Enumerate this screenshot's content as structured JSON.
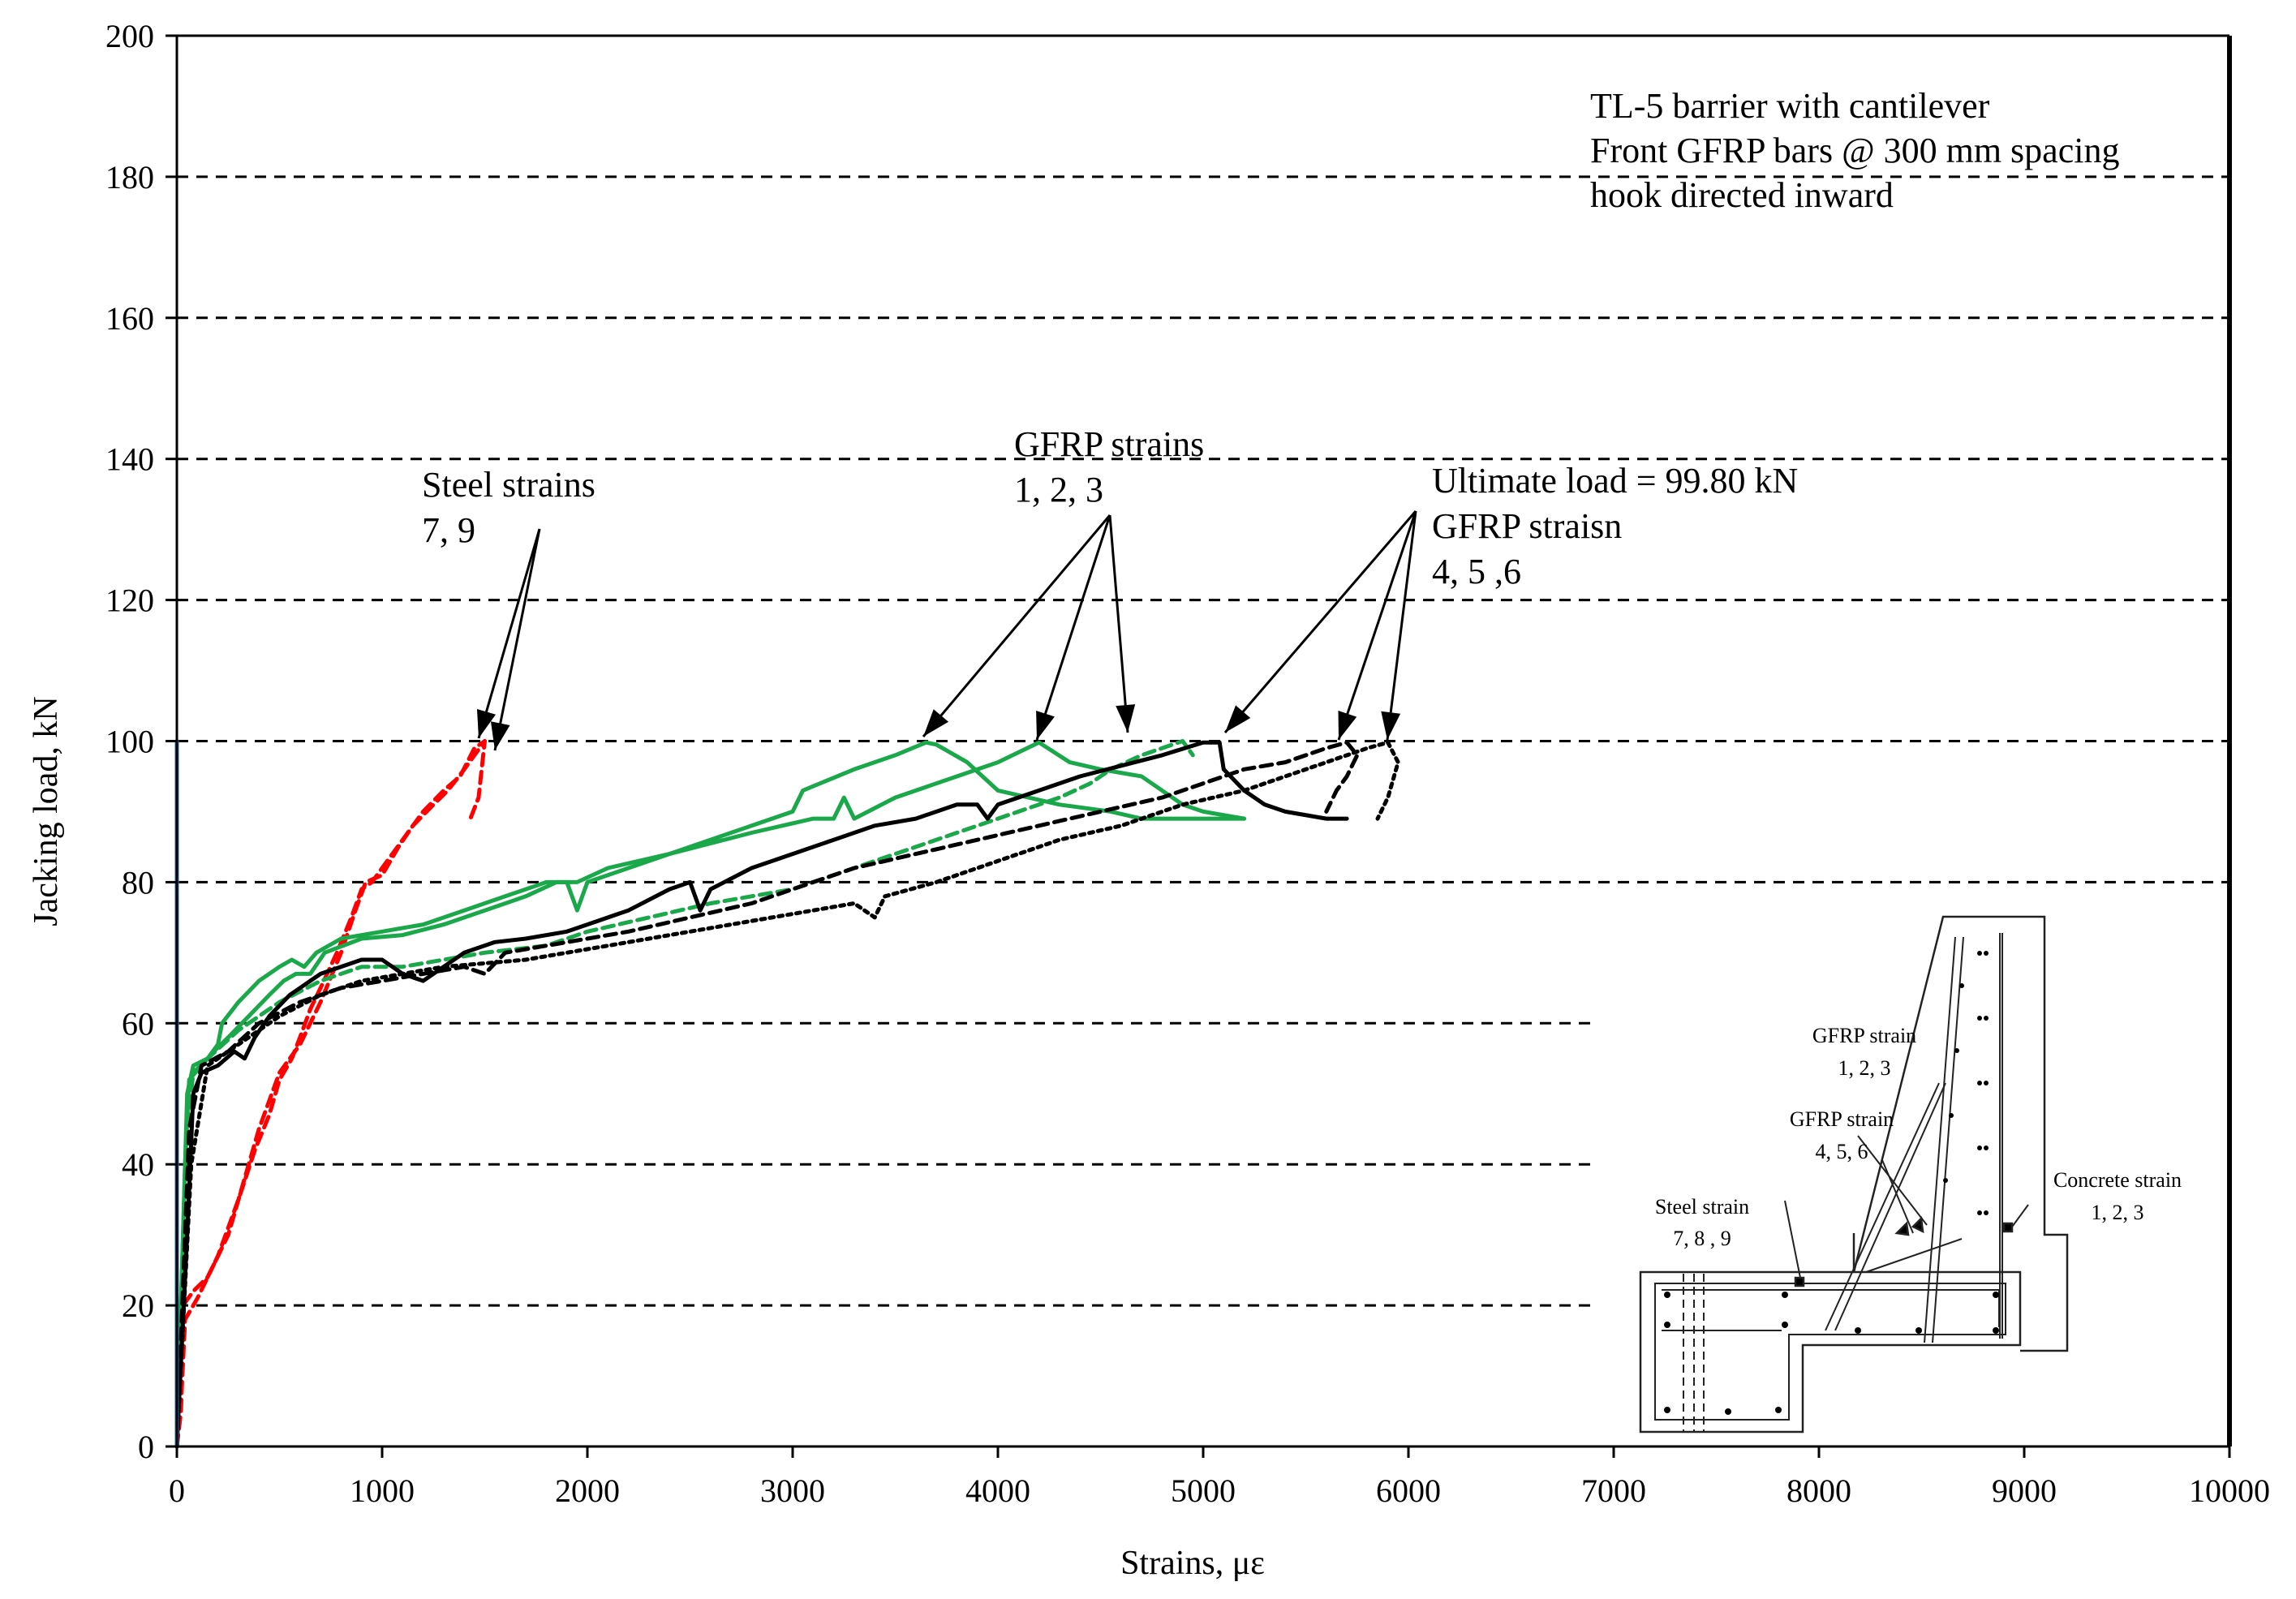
{
  "chart_data": {
    "type": "line",
    "xlabel": "Strains, με",
    "ylabel": "Jacking load, kN",
    "xlim": [
      0,
      10000
    ],
    "ylim": [
      0,
      200
    ],
    "x_ticks": [
      0,
      1000,
      2000,
      3000,
      4000,
      5000,
      6000,
      7000,
      8000,
      9000,
      10000
    ],
    "y_ticks": [
      0,
      20,
      40,
      60,
      80,
      100,
      120,
      140,
      160,
      180,
      200
    ],
    "grid": "horizontal dashed",
    "title_lines": [
      "TL-5 barrier with cantilever",
      "Front GFRP bars @ 300 mm spacing",
      "hook directed inward"
    ],
    "series": [
      {
        "name": "Steel strain 7",
        "color": "#ff0000",
        "style": "dashed",
        "points": [
          [
            0,
            0
          ],
          [
            20,
            5
          ],
          [
            30,
            20
          ],
          [
            80,
            22
          ],
          [
            150,
            24
          ],
          [
            200,
            27
          ],
          [
            300,
            35
          ],
          [
            380,
            42
          ],
          [
            450,
            47
          ],
          [
            500,
            52
          ],
          [
            560,
            55
          ],
          [
            600,
            58
          ],
          [
            650,
            62
          ],
          [
            700,
            65
          ],
          [
            780,
            70
          ],
          [
            850,
            75
          ],
          [
            900,
            79
          ],
          [
            950,
            80
          ],
          [
            1000,
            82
          ],
          [
            1100,
            86
          ],
          [
            1200,
            90
          ],
          [
            1300,
            93
          ],
          [
            1380,
            95
          ],
          [
            1450,
            99
          ],
          [
            1500,
            100
          ]
        ]
      },
      {
        "name": "Steel strain 9",
        "color": "#ff0000",
        "style": "dashed",
        "points": [
          [
            0,
            0
          ],
          [
            20,
            6
          ],
          [
            40,
            18
          ],
          [
            100,
            21
          ],
          [
            250,
            30
          ],
          [
            400,
            45
          ],
          [
            500,
            53
          ],
          [
            600,
            57
          ],
          [
            650,
            60
          ],
          [
            700,
            63
          ],
          [
            800,
            70
          ],
          [
            870,
            76
          ],
          [
            920,
            80
          ],
          [
            1000,
            81
          ],
          [
            1080,
            85
          ],
          [
            1150,
            88
          ],
          [
            1250,
            91
          ],
          [
            1320,
            93
          ],
          [
            1400,
            96
          ],
          [
            1450,
            98
          ],
          [
            1500,
            100
          ],
          [
            1470,
            92
          ],
          [
            1430,
            89
          ]
        ]
      },
      {
        "name": "GFRP strain 1",
        "color": "#1aa84a",
        "style": "solid",
        "points": [
          [
            0,
            0
          ],
          [
            30,
            30
          ],
          [
            50,
            50
          ],
          [
            80,
            54
          ],
          [
            150,
            55
          ],
          [
            200,
            57
          ],
          [
            220,
            60
          ],
          [
            300,
            63
          ],
          [
            400,
            66
          ],
          [
            500,
            68
          ],
          [
            560,
            69
          ],
          [
            620,
            68
          ],
          [
            680,
            70
          ],
          [
            800,
            72
          ],
          [
            1000,
            73
          ],
          [
            1200,
            74
          ],
          [
            1400,
            76
          ],
          [
            1600,
            78
          ],
          [
            1800,
            80
          ],
          [
            1900,
            80
          ],
          [
            1950,
            76
          ],
          [
            2000,
            80
          ],
          [
            2200,
            82
          ],
          [
            2500,
            85
          ],
          [
            2800,
            88
          ],
          [
            3000,
            90
          ],
          [
            3050,
            93
          ],
          [
            3300,
            96
          ],
          [
            3500,
            98
          ],
          [
            3650,
            99.8
          ],
          [
            3700,
            99.5
          ],
          [
            3850,
            97
          ],
          [
            4000,
            93
          ],
          [
            4300,
            91
          ],
          [
            4550,
            90
          ],
          [
            4700,
            89
          ],
          [
            5000,
            89
          ],
          [
            5200,
            89
          ]
        ]
      },
      {
        "name": "GFRP strain 2",
        "color": "#1aa84a",
        "style": "solid",
        "points": [
          [
            0,
            0
          ],
          [
            40,
            40
          ],
          [
            60,
            52
          ],
          [
            120,
            54
          ],
          [
            180,
            56
          ],
          [
            250,
            58
          ],
          [
            350,
            61
          ],
          [
            450,
            64
          ],
          [
            520,
            66
          ],
          [
            580,
            67
          ],
          [
            650,
            67
          ],
          [
            720,
            70
          ],
          [
            900,
            72
          ],
          [
            1100,
            72.5
          ],
          [
            1300,
            74
          ],
          [
            1500,
            76
          ],
          [
            1700,
            78
          ],
          [
            1850,
            80
          ],
          [
            1950,
            80
          ],
          [
            2100,
            82
          ],
          [
            2400,
            84
          ],
          [
            2800,
            87
          ],
          [
            3100,
            89
          ],
          [
            3200,
            89
          ],
          [
            3250,
            92
          ],
          [
            3300,
            89
          ],
          [
            3500,
            92
          ],
          [
            3800,
            95
          ],
          [
            4000,
            97
          ],
          [
            4200,
            99.8
          ],
          [
            4350,
            97
          ],
          [
            4500,
            96
          ],
          [
            4700,
            95
          ],
          [
            4800,
            93
          ],
          [
            4900,
            91
          ],
          [
            5000,
            90
          ],
          [
            5200,
            89
          ]
        ]
      },
      {
        "name": "GFRP strain 3",
        "color": "#1aa84a",
        "style": "dashed",
        "points": [
          [
            0,
            0
          ],
          [
            50,
            45
          ],
          [
            80,
            53
          ],
          [
            150,
            55
          ],
          [
            300,
            59
          ],
          [
            500,
            63
          ],
          [
            700,
            66
          ],
          [
            900,
            68
          ],
          [
            1100,
            68
          ],
          [
            1300,
            69
          ],
          [
            1500,
            70
          ],
          [
            1800,
            71
          ],
          [
            2000,
            73
          ],
          [
            2300,
            75
          ],
          [
            2600,
            77
          ],
          [
            2800,
            78
          ],
          [
            3000,
            79
          ],
          [
            3300,
            82
          ],
          [
            3600,
            85
          ],
          [
            3900,
            88
          ],
          [
            4100,
            90
          ],
          [
            4300,
            92
          ],
          [
            4450,
            94
          ],
          [
            4550,
            96
          ],
          [
            4700,
            98
          ],
          [
            4900,
            100
          ],
          [
            4950,
            98
          ]
        ]
      },
      {
        "name": "GFRP strain 4",
        "color": "#000000",
        "style": "solid",
        "points": [
          [
            0,
            0
          ],
          [
            50,
            30
          ],
          [
            80,
            50
          ],
          [
            120,
            53
          ],
          [
            200,
            54
          ],
          [
            280,
            56
          ],
          [
            330,
            55
          ],
          [
            380,
            58
          ],
          [
            450,
            61
          ],
          [
            550,
            64
          ],
          [
            700,
            67
          ],
          [
            900,
            69
          ],
          [
            1000,
            69
          ],
          [
            1100,
            67
          ],
          [
            1200,
            66
          ],
          [
            1300,
            68
          ],
          [
            1400,
            70
          ],
          [
            1550,
            71.5
          ],
          [
            1700,
            72
          ],
          [
            1900,
            73
          ],
          [
            2000,
            74
          ],
          [
            2200,
            76
          ],
          [
            2400,
            79
          ],
          [
            2500,
            80
          ],
          [
            2550,
            76
          ],
          [
            2600,
            79
          ],
          [
            2800,
            82
          ],
          [
            3000,
            84
          ],
          [
            3200,
            86
          ],
          [
            3400,
            88
          ],
          [
            3600,
            89
          ],
          [
            3800,
            91
          ],
          [
            3900,
            91
          ],
          [
            3950,
            89
          ],
          [
            4000,
            91
          ],
          [
            4200,
            93
          ],
          [
            4400,
            95
          ],
          [
            4600,
            96.5
          ],
          [
            4800,
            98
          ],
          [
            5000,
            99.8
          ],
          [
            5080,
            99.8
          ],
          [
            5100,
            96
          ],
          [
            5200,
            93
          ],
          [
            5300,
            91
          ],
          [
            5400,
            90
          ],
          [
            5600,
            89
          ],
          [
            5700,
            89
          ]
        ]
      },
      {
        "name": "GFRP strain 5",
        "color": "#000000",
        "style": "dashed",
        "points": [
          [
            0,
            0
          ],
          [
            60,
            45
          ],
          [
            120,
            54
          ],
          [
            250,
            56
          ],
          [
            400,
            60
          ],
          [
            600,
            63
          ],
          [
            800,
            65
          ],
          [
            1000,
            66
          ],
          [
            1200,
            67
          ],
          [
            1400,
            68
          ],
          [
            1500,
            67
          ],
          [
            1600,
            70
          ],
          [
            1800,
            71
          ],
          [
            2000,
            72
          ],
          [
            2200,
            73
          ],
          [
            2500,
            75
          ],
          [
            2800,
            77
          ],
          [
            3000,
            79
          ],
          [
            3300,
            82
          ],
          [
            3600,
            84
          ],
          [
            3900,
            86
          ],
          [
            4200,
            88
          ],
          [
            4500,
            90
          ],
          [
            4800,
            92
          ],
          [
            5000,
            94
          ],
          [
            5200,
            96
          ],
          [
            5400,
            97
          ],
          [
            5600,
            99
          ],
          [
            5700,
            99.8
          ],
          [
            5750,
            98
          ],
          [
            5700,
            95
          ],
          [
            5650,
            93
          ],
          [
            5600,
            90
          ]
        ]
      },
      {
        "name": "GFRP strain 6",
        "color": "#000000",
        "style": "dotted",
        "points": [
          [
            0,
            0
          ],
          [
            70,
            40
          ],
          [
            150,
            54
          ],
          [
            300,
            57
          ],
          [
            500,
            61
          ],
          [
            700,
            64
          ],
          [
            900,
            66
          ],
          [
            1100,
            67
          ],
          [
            1300,
            68
          ],
          [
            1500,
            68.5
          ],
          [
            1700,
            69
          ],
          [
            1900,
            70
          ],
          [
            2100,
            71
          ],
          [
            2300,
            72
          ],
          [
            2500,
            73
          ],
          [
            2700,
            74
          ],
          [
            2900,
            75
          ],
          [
            3100,
            76
          ],
          [
            3300,
            77
          ],
          [
            3400,
            75
          ],
          [
            3450,
            78
          ],
          [
            3700,
            80
          ],
          [
            4000,
            83
          ],
          [
            4300,
            86
          ],
          [
            4600,
            88
          ],
          [
            4900,
            91
          ],
          [
            5200,
            93
          ],
          [
            5400,
            95
          ],
          [
            5600,
            97
          ],
          [
            5800,
            99
          ],
          [
            5900,
            99.8
          ],
          [
            5950,
            97
          ],
          [
            5900,
            92
          ],
          [
            5850,
            89
          ]
        ]
      },
      {
        "name": "Axis load line",
        "color": "#1f6fb4",
        "style": "solid",
        "points": [
          [
            0,
            0
          ],
          [
            0,
            100
          ]
        ]
      }
    ],
    "annotations": {
      "steel": [
        "Steel strains",
        "7, 9"
      ],
      "gfrp123": [
        "GFRP strains",
        "1, 2, 3"
      ],
      "ultimate": [
        "Ultimate load = 99.80 kN",
        "GFRP straisn",
        "4, 5 ,6"
      ]
    },
    "inset_labels": {
      "gfrp123": [
        "GFRP strain",
        "1, 2, 3"
      ],
      "gfrp456": [
        "GFRP strain",
        "4, 5, 6"
      ],
      "steel": [
        "Steel strain",
        "7, 8 , 9"
      ],
      "concrete": [
        "Concrete  strain",
        "1, 2, 3"
      ]
    }
  }
}
